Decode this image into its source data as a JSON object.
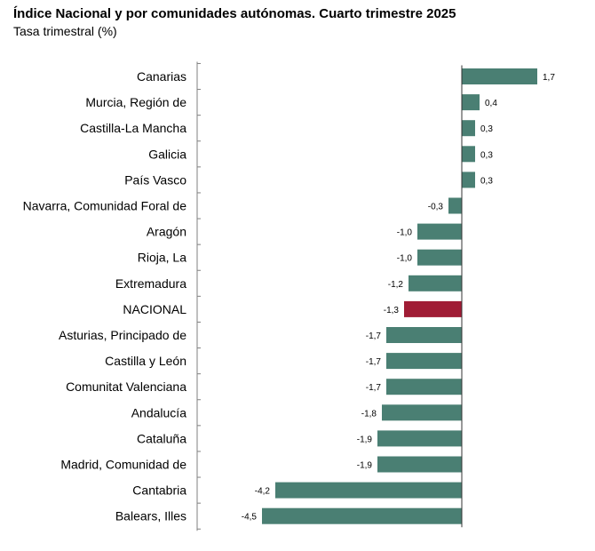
{
  "chart_data": {
    "type": "bar",
    "orientation": "horizontal",
    "title": "Índice Nacional y por comunidades autónomas. Cuarto trimestre 2025",
    "subtitle": "Tasa trimestral (%)",
    "xlabel": "",
    "ylabel": "",
    "xlim": [
      -4.5,
      1.7
    ],
    "grid": false,
    "categories": [
      "Canarias",
      "Murcia, Región de",
      "Castilla-La Mancha",
      "Galicia",
      "País Vasco",
      "Navarra, Comunidad Foral de",
      "Aragón",
      "Rioja, La",
      "Extremadura",
      "NACIONAL",
      "Asturias, Principado de",
      "Castilla y León",
      "Comunitat Valenciana",
      "Andalucía",
      "Cataluña",
      "Madrid, Comunidad de",
      "Cantabria",
      "Balears, Illes"
    ],
    "values": [
      1.7,
      0.4,
      0.3,
      0.3,
      0.3,
      -0.3,
      -1.0,
      -1.0,
      -1.2,
      -1.3,
      -1.7,
      -1.7,
      -1.7,
      -1.8,
      -1.9,
      -1.9,
      -4.2,
      -4.5
    ],
    "value_labels": [
      "1,7",
      "0,4",
      "0,3",
      "0,3",
      "0,3",
      "-0,3",
      "-1,0",
      "-1,0",
      "-1,2",
      "-1,3",
      "-1,7",
      "-1,7",
      "-1,7",
      "-1,8",
      "-1,9",
      "-1,9",
      "-4,2",
      "-4,5"
    ],
    "colors": {
      "default": "#4a7f73",
      "highlight": "#a01c35",
      "axis": "#808080"
    },
    "highlight_category": "NACIONAL"
  }
}
